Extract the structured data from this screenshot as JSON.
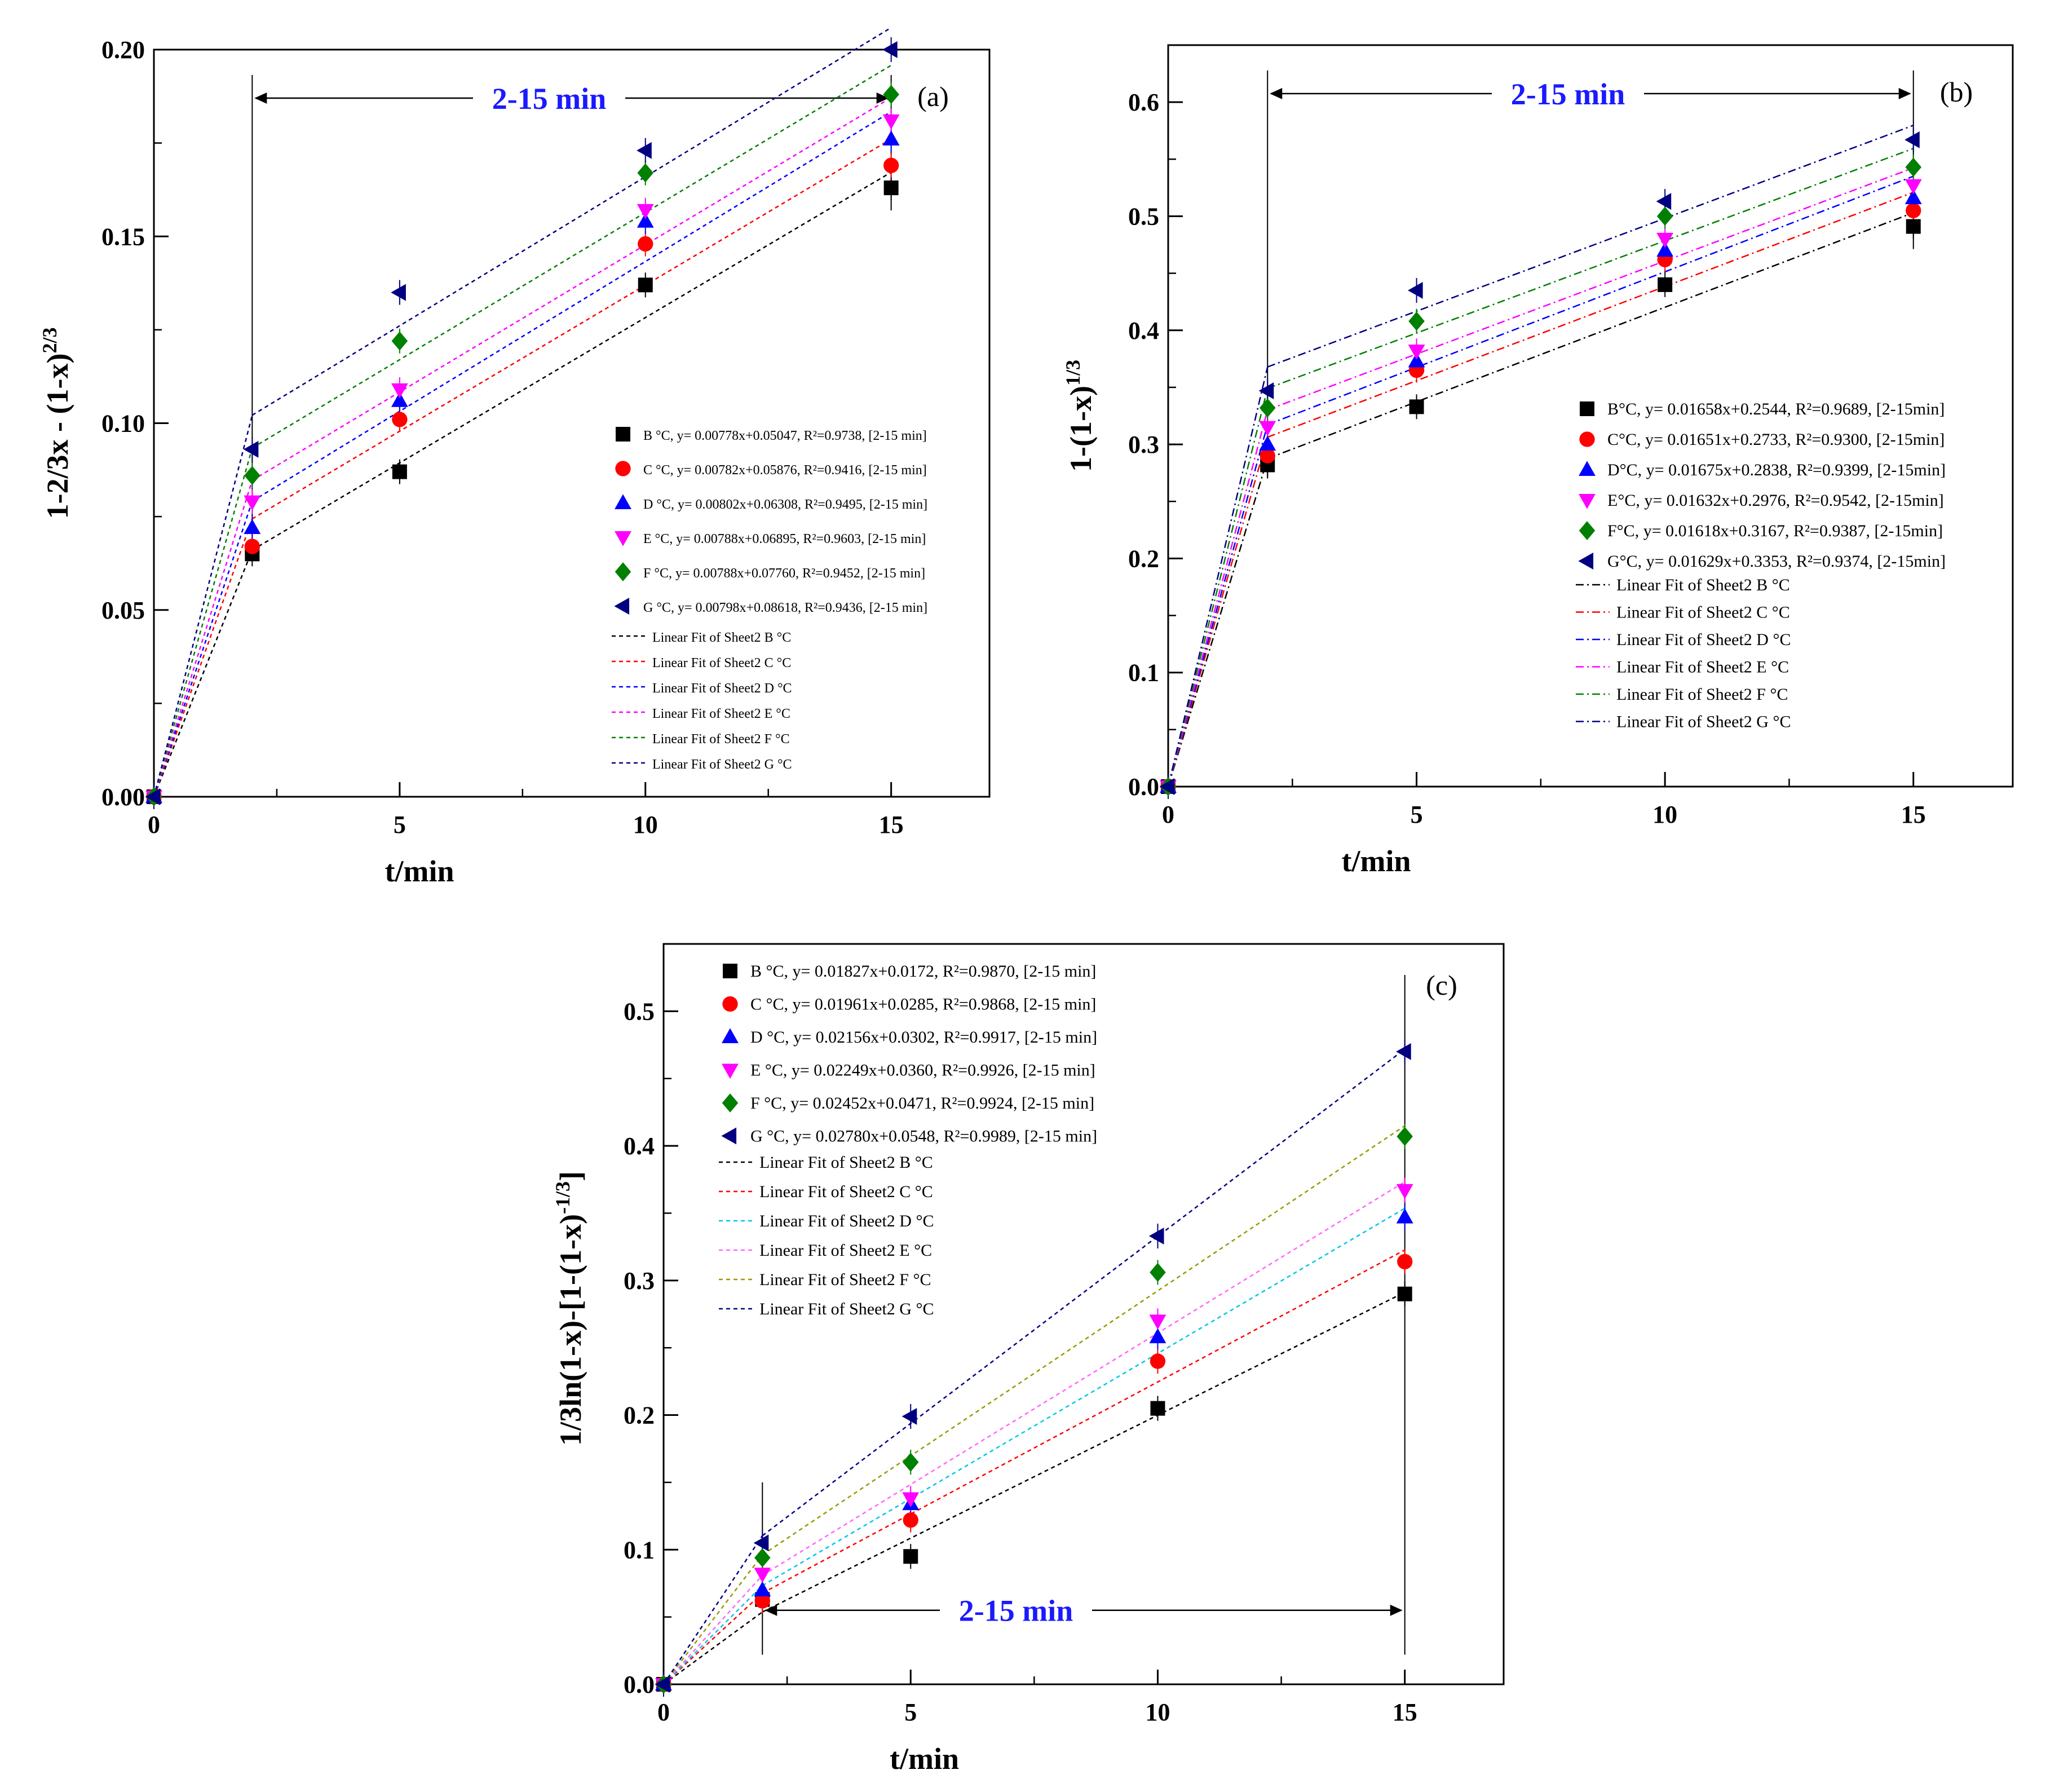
{
  "colors": {
    "B": "#000000",
    "C": "#ff0000",
    "D": "#0000ff",
    "E": "#ff00ff",
    "F": "#008000",
    "G": "#000080",
    "range_label": "#1a1aff",
    "fit_D_c": "#00c8e6",
    "fit_E_c": "#ff66ff",
    "fit_F_c": "#999900"
  },
  "chart_data": [
    {
      "id": "a",
      "type": "scatter",
      "panel_tag": "(a)",
      "range_label": "2-15 min",
      "range_x": [
        2,
        15
      ],
      "xlabel": "t/min",
      "ylabel": "1-2/3x - (1-x)^{2/3}",
      "xlim": [
        0,
        17
      ],
      "ylim": [
        0,
        0.2
      ],
      "xticks": [
        0,
        5,
        10,
        15
      ],
      "xtick_labels": [
        "0",
        "5",
        "10",
        "15"
      ],
      "yticks": [
        0,
        0.05,
        0.1,
        0.15,
        0.2
      ],
      "ytick_labels": [
        "0.00",
        "0.05",
        "0.10",
        "0.15",
        "0.20"
      ],
      "x": [
        0,
        2,
        5,
        10,
        15
      ],
      "series": [
        {
          "key": "B",
          "marker": "square",
          "values": [
            0,
            0.065,
            0.087,
            0.137,
            0.163
          ],
          "legend": "B °C, y= 0.00778x+0.05047, R²=0.9738, [2-15 min]",
          "fit": {
            "slope": 0.00778,
            "intercept": 0.05047,
            "legend": "Linear Fit of Sheet2 B °C"
          }
        },
        {
          "key": "C",
          "marker": "circle",
          "values": [
            0,
            0.067,
            0.101,
            0.148,
            0.169
          ],
          "legend": "C °C, y= 0.00782x+0.05876, R²=0.9416, [2-15 min]",
          "fit": {
            "slope": 0.00782,
            "intercept": 0.05876,
            "legend": "Linear Fit of Sheet2 C °C"
          }
        },
        {
          "key": "D",
          "marker": "triangle-up",
          "values": [
            0,
            0.072,
            0.106,
            0.154,
            0.176
          ],
          "legend": "D °C, y= 0.00802x+0.06308, R²=0.9495, [2-15 min]",
          "fit": {
            "slope": 0.00802,
            "intercept": 0.06308,
            "legend": "Linear Fit of Sheet2 D °C"
          }
        },
        {
          "key": "E",
          "marker": "triangle-down",
          "values": [
            0,
            0.079,
            0.109,
            0.157,
            0.181
          ],
          "legend": "E °C, y= 0.00788x+0.06895, R²=0.9603, [2-15 min]",
          "fit": {
            "slope": 0.00788,
            "intercept": 0.06895,
            "legend": "Linear Fit of Sheet2 E °C"
          }
        },
        {
          "key": "F",
          "marker": "diamond",
          "values": [
            0,
            0.086,
            0.122,
            0.167,
            0.188
          ],
          "legend": "F °C, y= 0.00788x+0.07760, R²=0.9452, [2-15 min]",
          "fit": {
            "slope": 0.00788,
            "intercept": 0.0776,
            "legend": "Linear Fit of Sheet2 F °C"
          }
        },
        {
          "key": "G",
          "marker": "triangle-left",
          "values": [
            0,
            0.093,
            0.135,
            0.173,
            0.2
          ],
          "legend": "G °C, y= 0.00798x+0.08618, R²=0.9436, [2-15 min]",
          "fit": {
            "slope": 0.00798,
            "intercept": 0.08618,
            "legend": "Linear Fit of Sheet2 G °C"
          }
        }
      ]
    },
    {
      "id": "b",
      "type": "scatter",
      "panel_tag": "(b)",
      "range_label": "2-15 min",
      "range_x": [
        2,
        15
      ],
      "xlabel": "t/min",
      "ylabel": "1-(1-x)^{1/3}",
      "xlim": [
        0,
        17
      ],
      "ylim": [
        0,
        0.65
      ],
      "xticks": [
        0,
        5,
        10,
        15
      ],
      "xtick_labels": [
        "0",
        "5",
        "10",
        "15"
      ],
      "yticks": [
        0,
        0.1,
        0.2,
        0.3,
        0.4,
        0.5,
        0.6
      ],
      "ytick_labels": [
        "0.0",
        "0.1",
        "0.2",
        "0.3",
        "0.4",
        "0.5",
        "0.6"
      ],
      "x": [
        0,
        2,
        5,
        10,
        15
      ],
      "series": [
        {
          "key": "B",
          "marker": "square",
          "values": [
            0,
            0.282,
            0.333,
            0.44,
            0.491
          ],
          "legend": "B°C, y= 0.01658x+0.2544, R²=0.9689, [2-15min]",
          "fit": {
            "slope": 0.01658,
            "intercept": 0.2544,
            "legend": "Linear Fit of Sheet2 B °C"
          }
        },
        {
          "key": "C",
          "marker": "circle",
          "values": [
            0,
            0.29,
            0.365,
            0.462,
            0.505
          ],
          "legend": "C°C, y= 0.01651x+0.2733, R²=0.9300, [2-15min]",
          "fit": {
            "slope": 0.01651,
            "intercept": 0.2733,
            "legend": "Linear Fit of Sheet2 C °C"
          }
        },
        {
          "key": "D",
          "marker": "triangle-up",
          "values": [
            0,
            0.3,
            0.373,
            0.47,
            0.516
          ],
          "legend": "D°C, y= 0.01675x+0.2838, R²=0.9399, [2-15min]",
          "fit": {
            "slope": 0.01675,
            "intercept": 0.2838,
            "legend": "Linear Fit of Sheet2 D °C"
          }
        },
        {
          "key": "E",
          "marker": "triangle-down",
          "values": [
            0,
            0.315,
            0.382,
            0.48,
            0.527
          ],
          "legend": "E°C, y= 0.01632x+0.2976, R²=0.9542, [2-15min]",
          "fit": {
            "slope": 0.01632,
            "intercept": 0.2976,
            "legend": "Linear Fit of Sheet2 E °C"
          }
        },
        {
          "key": "F",
          "marker": "diamond",
          "values": [
            0,
            0.332,
            0.408,
            0.5,
            0.543
          ],
          "legend": "F°C, y= 0.01618x+0.3167, R²=0.9387, [2-15min]",
          "fit": {
            "slope": 0.01618,
            "intercept": 0.3167,
            "legend": "Linear Fit of Sheet2 F °C"
          }
        },
        {
          "key": "G",
          "marker": "triangle-left",
          "values": [
            0,
            0.347,
            0.435,
            0.513,
            0.567
          ],
          "legend": "G°C, y= 0.01629x+0.3353, R²=0.9374, [2-15min]",
          "fit": {
            "slope": 0.01629,
            "intercept": 0.3353,
            "legend": "Linear Fit of Sheet2 G °C"
          }
        }
      ]
    },
    {
      "id": "c",
      "type": "scatter",
      "panel_tag": "(c)",
      "range_label": "2-15 min",
      "range_x": [
        2,
        15
      ],
      "xlabel": "t/min",
      "ylabel": "1/3ln(1-x)-[1-(1-x)^{-1/3}]",
      "xlim": [
        0,
        17
      ],
      "ylim": [
        0,
        0.55
      ],
      "xticks": [
        0,
        5,
        10,
        15
      ],
      "xtick_labels": [
        "0",
        "5",
        "10",
        "15"
      ],
      "yticks": [
        0,
        0.1,
        0.2,
        0.3,
        0.4,
        0.5
      ],
      "ytick_labels": [
        "0.0",
        "0.1",
        "0.2",
        "0.3",
        "0.4",
        "0.5"
      ],
      "x": [
        0,
        2,
        5,
        10,
        15
      ],
      "series": [
        {
          "key": "B",
          "marker": "square",
          "values": [
            0,
            0.063,
            0.095,
            0.205,
            0.29
          ],
          "legend": "B °C, y= 0.01827x+0.0172, R²=0.9870, [2-15 min]",
          "fit": {
            "slope": 0.01827,
            "intercept": 0.0172,
            "legend": "Linear Fit of Sheet2 B °C"
          }
        },
        {
          "key": "C",
          "marker": "circle",
          "values": [
            0,
            0.062,
            0.122,
            0.24,
            0.314
          ],
          "legend": "C °C, y= 0.01961x+0.0285, R²=0.9868, [2-15 min]",
          "fit": {
            "slope": 0.01961,
            "intercept": 0.0285,
            "legend": "Linear Fit of Sheet2 C °C"
          }
        },
        {
          "key": "D",
          "marker": "triangle-up",
          "values": [
            0,
            0.07,
            0.134,
            0.258,
            0.347
          ],
          "legend": "D °C, y= 0.02156x+0.0302, R²=0.9917, [2-15 min]",
          "fit": {
            "slope": 0.02156,
            "intercept": 0.0302,
            "legend": "Linear Fit of Sheet2 D °C"
          }
        },
        {
          "key": "E",
          "marker": "triangle-down",
          "values": [
            0,
            0.082,
            0.138,
            0.27,
            0.367
          ],
          "legend": "E °C, y= 0.02249x+0.0360, R²=0.9926, [2-15 min]",
          "fit": {
            "slope": 0.02249,
            "intercept": 0.036,
            "legend": "Linear Fit of Sheet2 E °C"
          }
        },
        {
          "key": "F",
          "marker": "diamond",
          "values": [
            0,
            0.094,
            0.165,
            0.306,
            0.407
          ],
          "legend": "F °C, y= 0.02452x+0.0471, R²=0.9924, [2-15 min]",
          "fit": {
            "slope": 0.02452,
            "intercept": 0.0471,
            "legend": "Linear Fit of Sheet2 F °C"
          }
        },
        {
          "key": "G",
          "marker": "triangle-left",
          "values": [
            0,
            0.105,
            0.199,
            0.333,
            0.47
          ],
          "legend": "G °C, y= 0.02780x+0.0548, R²=0.9989, [2-15 min]",
          "fit": {
            "slope": 0.0278,
            "intercept": 0.0548,
            "legend": "Linear Fit of Sheet2 G °C"
          }
        }
      ]
    }
  ]
}
